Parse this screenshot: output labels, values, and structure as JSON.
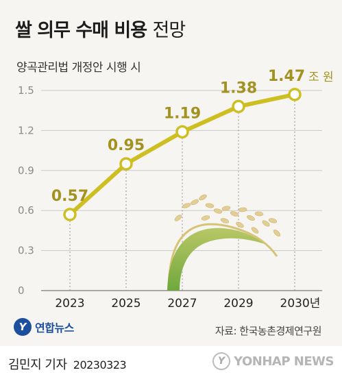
{
  "header": {
    "title_main": "쌀 의무 수매 비용",
    "title_sub": "전망",
    "subtitle": "양곡관리법 개정안 시행 시"
  },
  "chart_data": {
    "type": "line",
    "title": "쌀 의무 수매 비용 전망",
    "subtitle": "양곡관리법 개정안 시행 시",
    "x": [
      "2023",
      "2025",
      "2027",
      "2029",
      "2030"
    ],
    "x_tick_labels": [
      "2023",
      "2025",
      "2027",
      "2029",
      "2030년"
    ],
    "series": [
      {
        "values": [
          0.57,
          0.95,
          1.19,
          1.38,
          1.47
        ]
      }
    ],
    "data_labels": [
      "0.57",
      "0.95",
      "1.19",
      "1.38",
      "1.47"
    ],
    "unit_label": "조 원",
    "ylim": [
      0,
      1.5
    ],
    "yticks": [
      0,
      0.3,
      0.6,
      0.9,
      1.2,
      1.5
    ],
    "ytick_labels": [
      "0",
      "0.3",
      "0.6",
      "0.9",
      "1.2",
      "1.5"
    ],
    "grid": true,
    "colors": {
      "line": "#cdbf21",
      "marker_fill": "#ffffff",
      "label": "#a39220",
      "grid": "#c9c9c9"
    }
  },
  "footer": {
    "source": "자료: 한국농촌경제연구원",
    "logo_text": "연합뉴스",
    "author": "김민지 기자",
    "date": "20230323",
    "watermark": "YONHAP NEWS"
  }
}
